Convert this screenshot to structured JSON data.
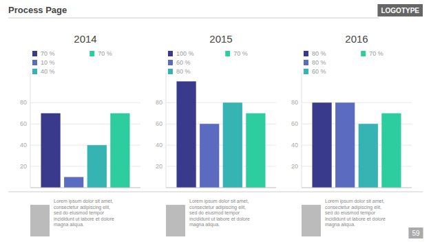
{
  "title": "Process Page",
  "annotations": [
    "LOGOTYPE",
    "Lorem ipsum dolor sit amet,\nconsectetur adipiscing elit,\nsed do eiusmod tempor\nincididunt ut labore et dolore\nmagna aliqua.",
    "59"
  ],
  "chart_data": [
    {
      "type": "bar",
      "title": "2014",
      "categories": [
        null
      ],
      "series": [
        {
          "name": "70 %",
          "color": "#3a3a8c",
          "values": [
            70
          ]
        },
        {
          "name": "10 %",
          "color": "#5b6bbf",
          "values": [
            10
          ]
        },
        {
          "name": "40 %",
          "color": "#36b4b4",
          "values": [
            40
          ]
        },
        {
          "name": "70 %",
          "color": "#2ecda0",
          "values": [
            70
          ]
        }
      ],
      "ylim": [
        0,
        108
      ],
      "yticks": [
        20,
        40,
        60,
        80
      ],
      "grid": true,
      "legend": "top",
      "tick_labels": "y"
    },
    {
      "type": "bar",
      "title": "2015",
      "categories": [
        null
      ],
      "series": [
        {
          "name": "100 %",
          "color": "#3a3a8c",
          "values": [
            100
          ]
        },
        {
          "name": "60 %",
          "color": "#5b6bbf",
          "values": [
            60
          ]
        },
        {
          "name": "80 %",
          "color": "#36b4b4",
          "values": [
            80
          ]
        },
        {
          "name": "70 %",
          "color": "#2ecda0",
          "values": [
            70
          ]
        }
      ],
      "ylim": [
        0,
        108
      ],
      "yticks": [
        20,
        40,
        60,
        80
      ],
      "grid": true,
      "legend": "top",
      "tick_labels": "y"
    },
    {
      "type": "bar",
      "title": "2016",
      "categories": [
        null
      ],
      "series": [
        {
          "name": "80 %",
          "color": "#3a3a8c",
          "values": [
            80
          ]
        },
        {
          "name": "80 %",
          "color": "#5b6bbf",
          "values": [
            80
          ]
        },
        {
          "name": "60 %",
          "color": "#36b4b4",
          "values": [
            60
          ]
        },
        {
          "name": "70 %",
          "color": "#2ecda0",
          "values": [
            70
          ]
        }
      ],
      "ylim": [
        0,
        108
      ],
      "yticks": [
        20,
        40,
        60,
        80
      ],
      "grid": true,
      "legend": "top",
      "tick_labels": "y"
    }
  ]
}
